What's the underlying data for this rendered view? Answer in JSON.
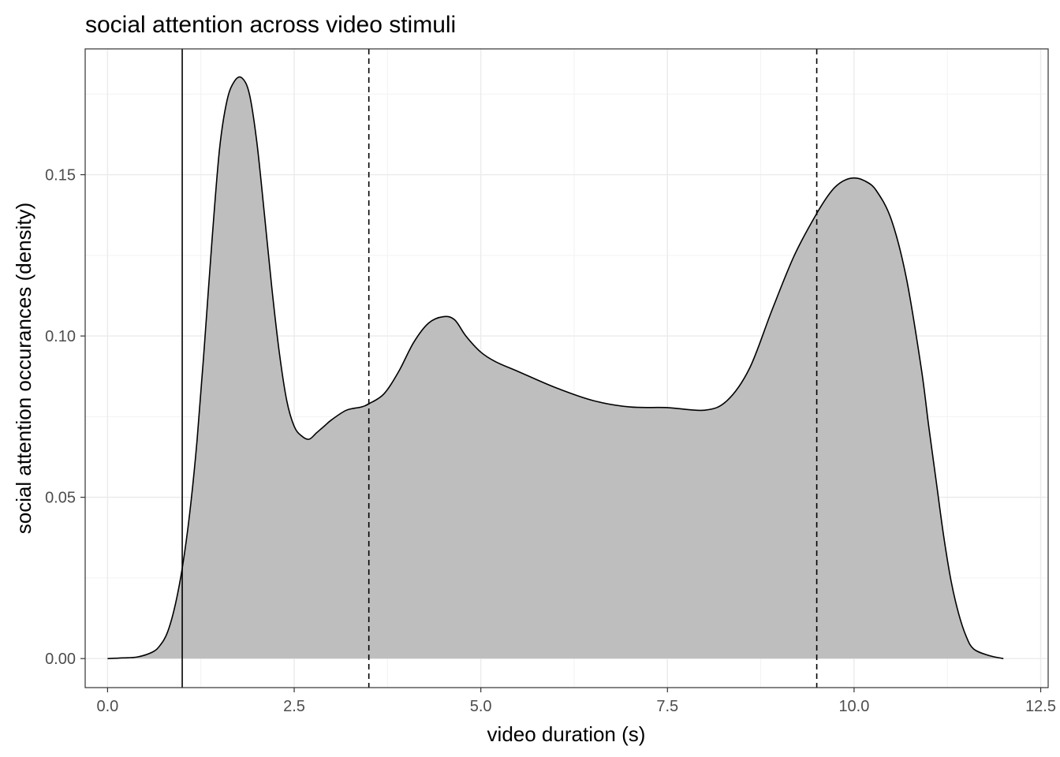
{
  "chart_data": {
    "type": "area",
    "title": "social attention across video stimuli",
    "xlabel": "video duration (s)",
    "ylabel": "social attention occurances (density)",
    "xlim": [
      -0.3,
      12.6
    ],
    "ylim": [
      -0.009,
      0.189
    ],
    "x_ticks": [
      0.0,
      2.5,
      5.0,
      7.5,
      10.0,
      12.5
    ],
    "x_tick_labels": [
      "0.0",
      "2.5",
      "5.0",
      "7.5",
      "10.0",
      "12.5"
    ],
    "y_ticks": [
      0.0,
      0.05,
      0.1,
      0.15
    ],
    "y_tick_labels": [
      "0.00",
      "0.05",
      "0.10",
      "0.15"
    ],
    "grid": true,
    "theme": "bw",
    "fill_color": "#bebebe",
    "line_color": "#000000",
    "series": [
      {
        "x": [
          0.0,
          0.2,
          0.4,
          0.6,
          0.7,
          0.8,
          0.9,
          1.0,
          1.1,
          1.2,
          1.3,
          1.4,
          1.5,
          1.6,
          1.7,
          1.8,
          1.9,
          2.0,
          2.1,
          2.2,
          2.3,
          2.4,
          2.5,
          2.6,
          2.7,
          2.8,
          2.9,
          3.0,
          3.2,
          3.4,
          3.5,
          3.7,
          3.9,
          4.1,
          4.3,
          4.5,
          4.65,
          4.8,
          5.0,
          5.2,
          5.5,
          6.0,
          6.5,
          7.0,
          7.5,
          8.0,
          8.3,
          8.6,
          8.9,
          9.2,
          9.5,
          9.7,
          9.85,
          10.0,
          10.15,
          10.3,
          10.5,
          10.7,
          10.9,
          11.0,
          11.1,
          11.2,
          11.3,
          11.4,
          11.5,
          11.6,
          11.8,
          12.0
        ],
        "y": [
          0.0,
          0.0002,
          0.0005,
          0.002,
          0.004,
          0.008,
          0.016,
          0.028,
          0.045,
          0.068,
          0.098,
          0.13,
          0.158,
          0.173,
          0.179,
          0.18,
          0.175,
          0.16,
          0.138,
          0.115,
          0.095,
          0.08,
          0.072,
          0.069,
          0.068,
          0.07,
          0.072,
          0.074,
          0.077,
          0.078,
          0.079,
          0.082,
          0.089,
          0.098,
          0.104,
          0.106,
          0.105,
          0.1,
          0.095,
          0.092,
          0.089,
          0.084,
          0.08,
          0.078,
          0.0778,
          0.077,
          0.08,
          0.09,
          0.108,
          0.125,
          0.138,
          0.145,
          0.148,
          0.149,
          0.148,
          0.145,
          0.136,
          0.118,
          0.09,
          0.072,
          0.055,
          0.038,
          0.024,
          0.014,
          0.007,
          0.003,
          0.001,
          0.0
        ]
      }
    ],
    "vlines": [
      {
        "x": 1.0,
        "style": "solid"
      },
      {
        "x": 3.5,
        "style": "dashed"
      },
      {
        "x": 9.5,
        "style": "dashed"
      }
    ]
  }
}
